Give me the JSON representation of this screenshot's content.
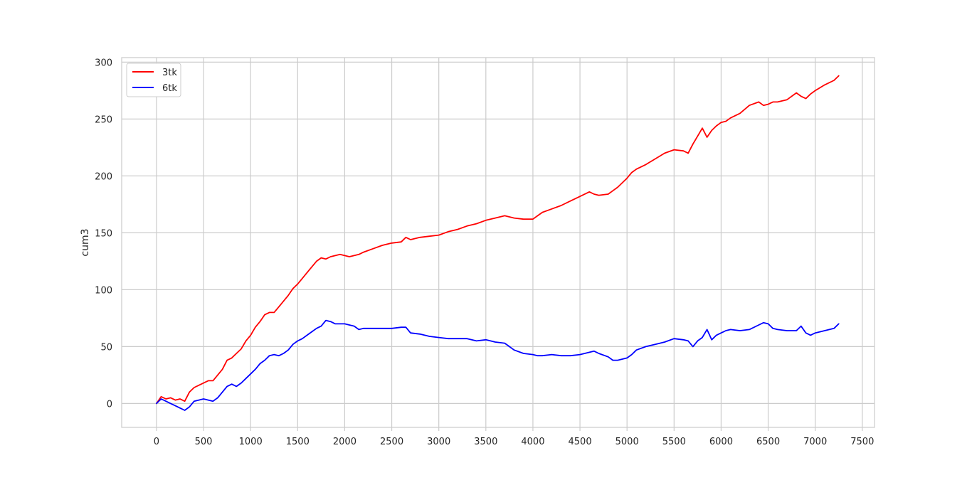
{
  "chart_data": {
    "type": "line",
    "title": "",
    "xlabel": "",
    "ylabel": "cum3",
    "xlim": [
      -370,
      7630
    ],
    "ylim": [
      -21,
      304
    ],
    "x_ticks": [
      0,
      500,
      1000,
      1500,
      2000,
      2500,
      3000,
      3500,
      4000,
      4500,
      5000,
      5500,
      6000,
      6500,
      7000,
      7500
    ],
    "y_ticks": [
      0,
      50,
      100,
      150,
      200,
      250,
      300
    ],
    "grid": true,
    "legend_position": "top-left",
    "series": [
      {
        "name": "3tk",
        "color": "#ff0000",
        "x": [
          0,
          50,
          100,
          150,
          200,
          250,
          300,
          350,
          400,
          450,
          500,
          550,
          600,
          650,
          700,
          750,
          800,
          850,
          900,
          950,
          1000,
          1050,
          1100,
          1150,
          1200,
          1250,
          1300,
          1350,
          1400,
          1450,
          1500,
          1550,
          1600,
          1650,
          1700,
          1750,
          1800,
          1850,
          1900,
          1950,
          2000,
          2050,
          2100,
          2150,
          2200,
          2300,
          2400,
          2500,
          2600,
          2650,
          2700,
          2800,
          2900,
          3000,
          3100,
          3200,
          3300,
          3400,
          3500,
          3600,
          3700,
          3750,
          3800,
          3900,
          4000,
          4050,
          4100,
          4200,
          4300,
          4400,
          4500,
          4600,
          4650,
          4700,
          4800,
          4850,
          4900,
          5000,
          5050,
          5100,
          5200,
          5300,
          5400,
          5500,
          5600,
          5650,
          5700,
          5750,
          5800,
          5850,
          5900,
          5950,
          6000,
          6050,
          6100,
          6200,
          6300,
          6400,
          6450,
          6500,
          6550,
          6600,
          6700,
          6800,
          6850,
          6900,
          6950,
          7000,
          7100,
          7200,
          7250
        ],
        "values": [
          0,
          6,
          4,
          5,
          3,
          4,
          2,
          10,
          14,
          16,
          18,
          20,
          20,
          25,
          30,
          38,
          40,
          44,
          48,
          55,
          60,
          67,
          72,
          78,
          80,
          80,
          85,
          90,
          95,
          101,
          105,
          110,
          115,
          120,
          125,
          128,
          127,
          129,
          130,
          131,
          130,
          129,
          130,
          131,
          133,
          136,
          139,
          141,
          142,
          146,
          144,
          146,
          147,
          148,
          151,
          153,
          156,
          158,
          161,
          163,
          165,
          164,
          163,
          162,
          162,
          165,
          168,
          171,
          174,
          178,
          182,
          186,
          184,
          183,
          184,
          187,
          190,
          198,
          203,
          206,
          210,
          215,
          220,
          223,
          222,
          220,
          228,
          235,
          242,
          234,
          240,
          244,
          247,
          248,
          251,
          255,
          262,
          265,
          262,
          263,
          265,
          265,
          267,
          273,
          270,
          268,
          272,
          275,
          280,
          284,
          288
        ]
      },
      {
        "name": "6tk",
        "color": "#0000ff",
        "x": [
          0,
          50,
          100,
          150,
          200,
          250,
          300,
          350,
          400,
          450,
          500,
          550,
          600,
          650,
          700,
          750,
          800,
          850,
          900,
          950,
          1000,
          1050,
          1100,
          1150,
          1200,
          1250,
          1300,
          1350,
          1400,
          1450,
          1500,
          1550,
          1600,
          1650,
          1700,
          1750,
          1800,
          1850,
          1900,
          1950,
          2000,
          2050,
          2100,
          2150,
          2200,
          2300,
          2400,
          2500,
          2600,
          2650,
          2700,
          2800,
          2900,
          3000,
          3100,
          3200,
          3300,
          3400,
          3500,
          3600,
          3700,
          3750,
          3800,
          3900,
          4000,
          4050,
          4100,
          4200,
          4300,
          4400,
          4500,
          4600,
          4650,
          4700,
          4800,
          4850,
          4900,
          5000,
          5050,
          5100,
          5200,
          5300,
          5400,
          5500,
          5600,
          5650,
          5700,
          5750,
          5800,
          5850,
          5900,
          5950,
          6000,
          6050,
          6100,
          6200,
          6300,
          6400,
          6450,
          6500,
          6550,
          6600,
          6700,
          6800,
          6850,
          6900,
          6950,
          7000,
          7100,
          7200,
          7250
        ],
        "values": [
          0,
          4,
          2,
          0,
          -2,
          -4,
          -6,
          -3,
          2,
          3,
          4,
          3,
          2,
          5,
          10,
          15,
          17,
          15,
          18,
          22,
          26,
          30,
          35,
          38,
          42,
          43,
          42,
          44,
          47,
          52,
          55,
          57,
          60,
          63,
          66,
          68,
          73,
          72,
          70,
          70,
          70,
          69,
          68,
          65,
          66,
          66,
          66,
          66,
          67,
          67,
          62,
          61,
          59,
          58,
          57,
          57,
          57,
          55,
          56,
          54,
          53,
          50,
          47,
          44,
          43,
          42,
          42,
          43,
          42,
          42,
          43,
          45,
          46,
          44,
          41,
          38,
          38,
          40,
          43,
          47,
          50,
          52,
          54,
          57,
          56,
          55,
          50,
          55,
          58,
          65,
          56,
          60,
          62,
          64,
          65,
          64,
          65,
          69,
          71,
          70,
          66,
          65,
          64,
          64,
          68,
          62,
          60,
          62,
          64,
          66,
          70
        ]
      }
    ]
  }
}
